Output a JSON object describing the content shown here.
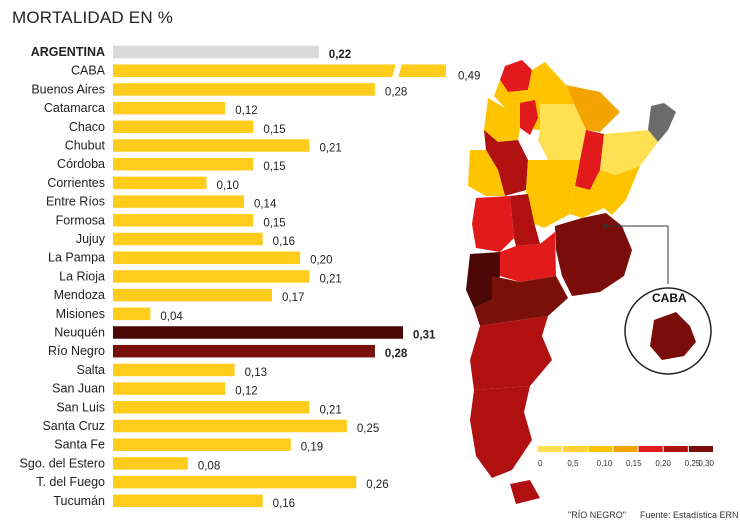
{
  "title": "MORTALIDAD EN %",
  "chart_data": {
    "type": "bar",
    "orientation": "horizontal",
    "title": "MORTALIDAD EN %",
    "categories": [
      "ARGENTINA",
      "CABA",
      "Buenos Aires",
      "Catamarca",
      "Chaco",
      "Chubut",
      "Córdoba",
      "Corrientes",
      "Entre Ríos",
      "Formosa",
      "Jujuy",
      "La Pampa",
      "La Rioja",
      "Mendoza",
      "Misiones",
      "Neuquén",
      "Río Negro",
      "Salta",
      "San Juan",
      "San Luis",
      "Santa Cruz",
      "Santa Fe",
      "Sgo. del Estero",
      "T. del Fuego",
      "Tucumán"
    ],
    "values": [
      0.22,
      0.49,
      0.28,
      0.12,
      0.15,
      0.21,
      0.15,
      0.1,
      0.14,
      0.15,
      0.16,
      0.2,
      0.21,
      0.17,
      0.04,
      0.31,
      0.28,
      0.13,
      0.12,
      0.21,
      0.25,
      0.19,
      0.08,
      0.26,
      0.16
    ],
    "value_labels": [
      "0,22",
      "0,49",
      "0,28",
      "0,12",
      "0,15",
      "0,21",
      "0,15",
      "0,10",
      "0,14",
      "0,15",
      "0,16",
      "0,20",
      "0,21",
      "0,17",
      "0,04",
      "0,31",
      "0,28",
      "0,13",
      "0,12",
      "0,21",
      "0,25",
      "0,19",
      "0,08",
      "0,26",
      "0,16"
    ],
    "highlight": [
      "ARGENTINA",
      "Neuquén",
      "Río Negro"
    ],
    "broken_axis_bars": [
      "CABA"
    ],
    "colors": {
      "national": "#d9d9d9",
      "bar": "#ffcc1c",
      "neuquen": "#4a0705",
      "rio_negro": "#7a100a"
    },
    "ylim": [
      0,
      0.31
    ],
    "grid": false
  },
  "map": {
    "inset_label": "CABA",
    "legend_ticks": [
      "0",
      "0,5",
      "0,10",
      "0,15",
      "0,20",
      "0,25",
      "0,30"
    ],
    "legend_colors": [
      "#ffe052",
      "#ffd233",
      "#ffc400",
      "#f4a400",
      "#e31a1c",
      "#b01010",
      "#7a0c0a"
    ],
    "other_color": "#6b6b6b"
  },
  "footer": {
    "note": "\"RÍO NEGRO\"",
    "source": "Fuente: Estadística ERN"
  }
}
